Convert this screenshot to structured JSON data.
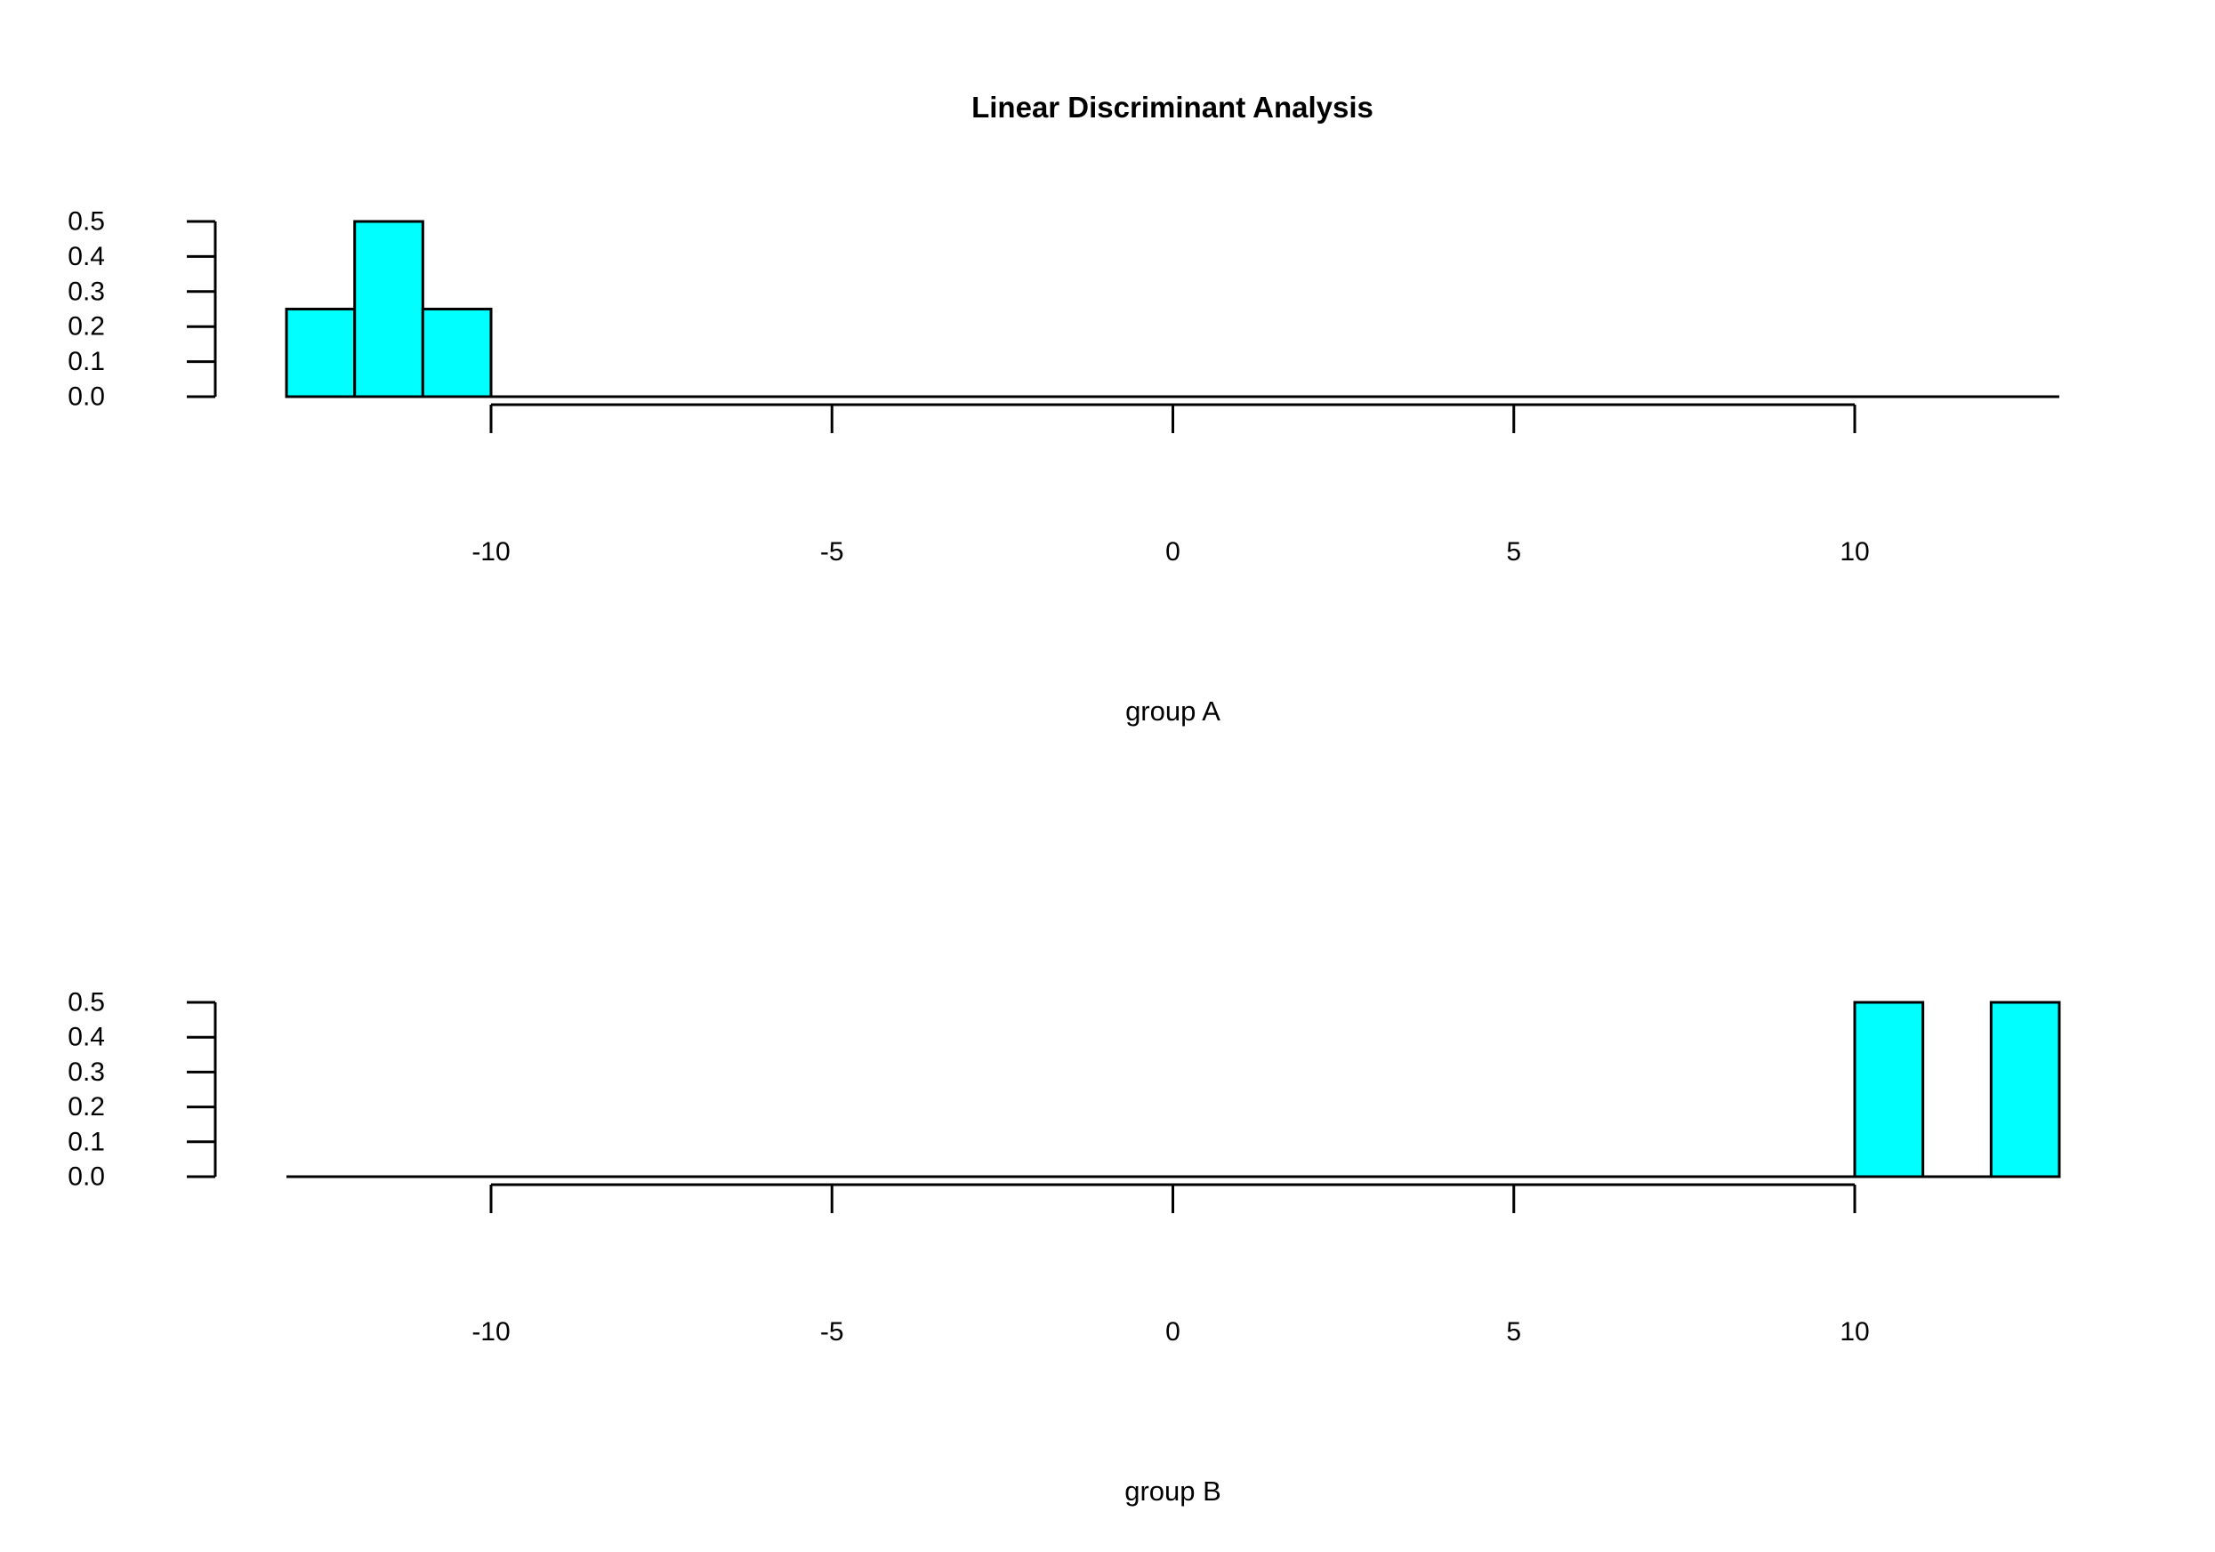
{
  "title": "Linear Discriminant Analysis",
  "colors": {
    "bar_fill": "#00FFFF",
    "bar_stroke": "#000000",
    "axis": "#000000",
    "background": "#FFFFFF"
  },
  "chart_data": [
    {
      "type": "bar",
      "title": "Linear Discriminant Analysis",
      "xlabel": "group A",
      "ylabel": "",
      "xlim": [
        -13,
        13
      ],
      "ylim": [
        0,
        0.5
      ],
      "x_ticks": [
        -10,
        -5,
        0,
        5,
        10
      ],
      "x_tick_labels": [
        "-10",
        "-5",
        "0",
        "5",
        "10"
      ],
      "y_ticks": [
        0,
        0.1,
        0.2,
        0.3,
        0.4,
        0.5
      ],
      "y_tick_labels": [
        "0.0",
        "0.1",
        "0.2",
        "0.3",
        "0.4",
        "0.5"
      ],
      "baseline": [
        -13,
        13
      ],
      "bins": [
        {
          "x0": -13,
          "x1": -12,
          "value": 0.25
        },
        {
          "x0": -12,
          "x1": -11,
          "value": 0.5
        },
        {
          "x0": -11,
          "x1": -10,
          "value": 0.25
        }
      ],
      "grid": false,
      "legend": "none"
    },
    {
      "type": "bar",
      "title": "",
      "xlabel": "group B",
      "ylabel": "",
      "xlim": [
        -13,
        13
      ],
      "ylim": [
        0,
        0.5
      ],
      "x_ticks": [
        -10,
        -5,
        0,
        5,
        10
      ],
      "x_tick_labels": [
        "-10",
        "-5",
        "0",
        "5",
        "10"
      ],
      "y_ticks": [
        0,
        0.1,
        0.2,
        0.3,
        0.4,
        0.5
      ],
      "y_tick_labels": [
        "0.0",
        "0.1",
        "0.2",
        "0.3",
        "0.4",
        "0.5"
      ],
      "baseline": [
        -13,
        13
      ],
      "bins": [
        {
          "x0": 10,
          "x1": 11,
          "value": 0.5
        },
        {
          "x0": 11,
          "x1": 12,
          "value": 0
        },
        {
          "x0": 12,
          "x1": 13,
          "value": 0.5
        }
      ],
      "grid": false,
      "legend": "none"
    }
  ]
}
